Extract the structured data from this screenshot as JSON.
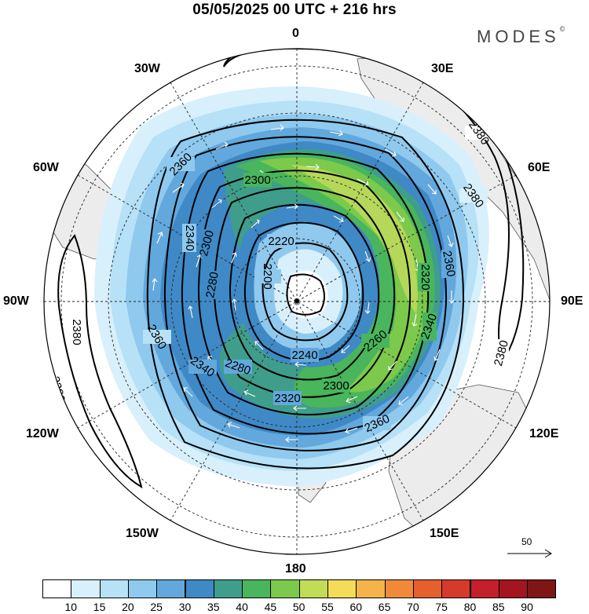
{
  "title": "05/05/2025  00 UTC  + 216 hrs",
  "brand": "MODES",
  "brand_mark": "©",
  "longitude_labels": {
    "lon_0": "0",
    "lon_30e": "30E",
    "lon_60e": "60E",
    "lon_90e": "90E",
    "lon_120e": "120E",
    "lon_150e": "150E",
    "lon_180": "180",
    "lon_150w": "150W",
    "lon_120w": "120W",
    "lon_90w": "90W",
    "lon_60w": "60W",
    "lon_30w": "30W"
  },
  "contour_labels": [
    "2200",
    "2220",
    "2240",
    "2260",
    "2280",
    "2300",
    "2320",
    "2340",
    "2360",
    "2380"
  ],
  "wind_reference": {
    "label": "50"
  },
  "colorbar": {
    "ticks": [
      "10",
      "15",
      "20",
      "25",
      "30",
      "35",
      "40",
      "45",
      "50",
      "55",
      "60",
      "65",
      "70",
      "75",
      "80",
      "85",
      "90"
    ],
    "colors": [
      "#ffffff",
      "#d8f0fb",
      "#b6e1f7",
      "#8fc9ee",
      "#62a8dc",
      "#3f89c6",
      "#3f9e8b",
      "#49b55c",
      "#7cc94b",
      "#c3dc55",
      "#f5dc58",
      "#f4b44a",
      "#f08a3a",
      "#e5602c",
      "#d63a2a",
      "#c41f2a",
      "#a3151f",
      "#7f1616"
    ]
  }
}
